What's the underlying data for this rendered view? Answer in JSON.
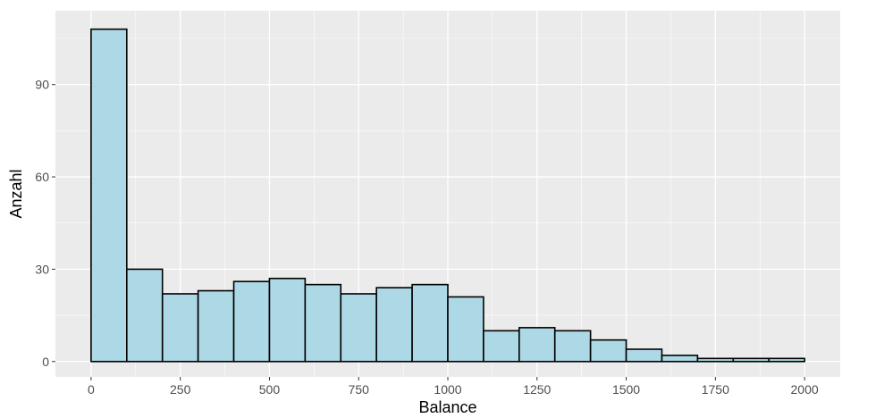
{
  "chart_data": {
    "type": "bar",
    "xlabel": "Balance",
    "ylabel": "Anzahl",
    "bin_width": 100,
    "bin_starts": [
      0,
      100,
      200,
      300,
      400,
      500,
      600,
      700,
      800,
      900,
      1000,
      1100,
      1200,
      1300,
      1400,
      1500,
      1600,
      1700,
      1800,
      1900
    ],
    "values": [
      108,
      30,
      22,
      23,
      26,
      27,
      25,
      22,
      24,
      25,
      21,
      10,
      11,
      10,
      7,
      4,
      2,
      1,
      1,
      1
    ],
    "xlim": [
      -100,
      2100
    ],
    "ylim": [
      -5,
      114
    ],
    "x_ticks": [
      0,
      250,
      500,
      750,
      1000,
      1250,
      1500,
      1750,
      2000
    ],
    "x_tick_labels": [
      "0",
      "250",
      "500",
      "750",
      "1000",
      "1250",
      "1500",
      "1750",
      "2000"
    ],
    "y_ticks": [
      0,
      30,
      60,
      90
    ],
    "y_tick_labels": [
      "0",
      "30",
      "60",
      "90"
    ],
    "grid": true,
    "bar_fill": "#add8e6",
    "bar_stroke": "#000000",
    "panel_background": "#ebebeb",
    "grid_color": "#ffffff"
  }
}
